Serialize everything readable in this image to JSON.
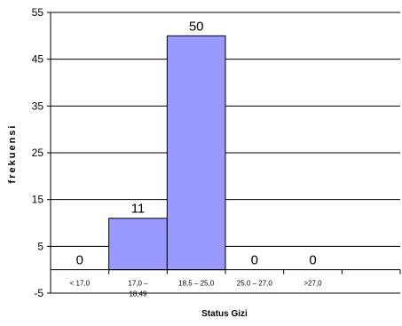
{
  "chart_data": {
    "type": "bar",
    "title": "",
    "xlabel": "Status Gizi",
    "ylabel": "frekuensi",
    "categories": [
      [
        "< 17,0"
      ],
      [
        "17,0 –",
        "18,49"
      ],
      [
        "18,5 – 25,0"
      ],
      [
        "25,0 – 27,0"
      ],
      [
        ">27,0"
      ],
      [
        ""
      ]
    ],
    "values": [
      0,
      11,
      50,
      0,
      0,
      null
    ],
    "data_labels": [
      "0",
      "11",
      "50",
      "0",
      "0",
      ""
    ],
    "yticks": [
      "55",
      "45",
      "35",
      "25",
      "15",
      "5",
      "-5"
    ],
    "ytick_values": [
      55,
      45,
      35,
      25,
      15,
      5,
      -5
    ],
    "ylim": [
      -5,
      55
    ],
    "grid": true,
    "legend": "none",
    "bar_color": "#9999ff",
    "bar_edge_color": "#000000"
  }
}
